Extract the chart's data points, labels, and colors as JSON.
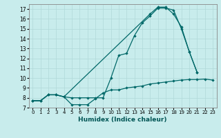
{
  "title": "",
  "xlabel": "Humidex (Indice chaleur)",
  "background_color": "#c8ecec",
  "grid_color": "#b0d8d8",
  "line_color": "#006868",
  "xlim": [
    -0.5,
    23.5
  ],
  "ylim": [
    7,
    17.5
  ],
  "yticks": [
    7,
    8,
    9,
    10,
    11,
    12,
    13,
    14,
    15,
    16,
    17
  ],
  "xticks": [
    0,
    1,
    2,
    3,
    4,
    5,
    6,
    7,
    8,
    9,
    10,
    11,
    12,
    13,
    14,
    15,
    16,
    17,
    18,
    19,
    20,
    21,
    22,
    23
  ],
  "series1_x": [
    0,
    1,
    2,
    3,
    4,
    5,
    6,
    7,
    8,
    9,
    10,
    11,
    12,
    13,
    14,
    15,
    16,
    17,
    18,
    19,
    20,
    21,
    22,
    23
  ],
  "series1_y": [
    7.7,
    7.7,
    8.3,
    8.3,
    8.1,
    7.3,
    7.3,
    7.3,
    7.9,
    8.5,
    8.8,
    8.8,
    9.0,
    9.1,
    9.2,
    9.4,
    9.5,
    9.6,
    9.7,
    9.8,
    9.85,
    9.85,
    9.9,
    9.8
  ],
  "series2_x": [
    0,
    1,
    2,
    3,
    4,
    5,
    6,
    7,
    8,
    9,
    10,
    11,
    12,
    13,
    14,
    15,
    16,
    17,
    18,
    19,
    20,
    21
  ],
  "series2_y": [
    7.7,
    7.7,
    8.3,
    8.3,
    8.1,
    8.0,
    8.0,
    8.0,
    8.0,
    8.0,
    10.0,
    12.3,
    12.5,
    14.3,
    15.6,
    16.3,
    17.1,
    17.1,
    16.9,
    15.0,
    12.7,
    10.6
  ],
  "series3_x": [
    0,
    1,
    2,
    3,
    4,
    15,
    16,
    17,
    18,
    19,
    20,
    21
  ],
  "series3_y": [
    7.7,
    7.7,
    8.3,
    8.3,
    8.1,
    16.5,
    17.2,
    17.2,
    16.5,
    15.2,
    12.7,
    10.6
  ],
  "series3_line_x": [
    4,
    15
  ],
  "series3_line_y": [
    8.1,
    16.5
  ]
}
